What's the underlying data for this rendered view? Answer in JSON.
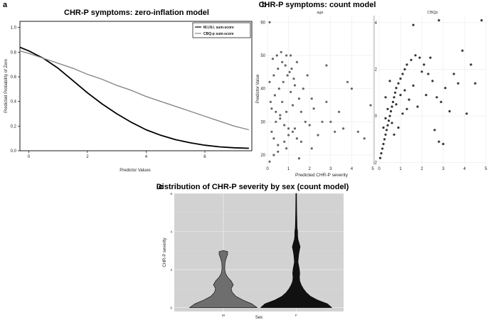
{
  "chart_data": [
    {
      "panel": "a",
      "type": "line",
      "title": "CHR-P symptoms: zero-inflation model",
      "xlabel": "Predictor Values",
      "ylabel": "Predicted Probability of Zero",
      "xlim": [
        -0.3,
        7.6
      ],
      "ylim": [
        0,
        1.05
      ],
      "xticks": [
        0,
        2,
        4,
        6
      ],
      "yticks": [
        0.0,
        0.2,
        0.4,
        0.6,
        0.8,
        1.0
      ],
      "legend_position": "top-right",
      "series": [
        {
          "name": "M.I.N.I. sum-score",
          "color": "#000000",
          "x": [
            -0.3,
            0,
            0.5,
            1,
            1.5,
            2,
            2.5,
            3,
            3.5,
            4,
            4.5,
            5,
            5.5,
            6,
            6.5,
            7,
            7.5
          ],
          "y": [
            0.84,
            0.81,
            0.75,
            0.67,
            0.57,
            0.47,
            0.38,
            0.3,
            0.23,
            0.17,
            0.125,
            0.09,
            0.065,
            0.045,
            0.032,
            0.024,
            0.02
          ]
        },
        {
          "name": "CBQ-p sum-score",
          "color": "#888888",
          "x": [
            -0.3,
            0,
            0.5,
            1,
            1.5,
            2,
            2.5,
            3,
            3.5,
            4,
            4.5,
            5,
            5.5,
            6,
            6.5,
            7,
            7.5
          ],
          "y": [
            0.81,
            0.79,
            0.75,
            0.71,
            0.67,
            0.62,
            0.58,
            0.53,
            0.49,
            0.44,
            0.4,
            0.36,
            0.32,
            0.28,
            0.24,
            0.2,
            0.17
          ]
        }
      ]
    },
    {
      "panel": "b",
      "type": "scatter",
      "title": "CHR-P symptoms: count model",
      "xlabel": "Predicted CHR-P severity",
      "ylabel": "Predictor Value",
      "facets": [
        {
          "strip": "age",
          "xlim": [
            0,
            5
          ],
          "ylim": [
            17,
            62
          ],
          "xticks": [
            0,
            1,
            2,
            3,
            4,
            5
          ],
          "yticks": [
            20,
            30,
            40,
            50,
            60
          ],
          "color": "#666666",
          "points": [
            [
              0.1,
              18
            ],
            [
              0.3,
              20
            ],
            [
              0.5,
              21
            ],
            [
              0.8,
              24
            ],
            [
              1.0,
              26
            ],
            [
              1.3,
              28
            ],
            [
              0.2,
              27
            ],
            [
              0.4,
              30
            ],
            [
              0.6,
              31
            ],
            [
              0.9,
              33
            ],
            [
              1.2,
              35
            ],
            [
              1.5,
              37
            ],
            [
              0.15,
              36
            ],
            [
              0.35,
              38
            ],
            [
              0.55,
              40
            ],
            [
              0.75,
              42
            ],
            [
              0.95,
              44
            ],
            [
              1.15,
              46
            ],
            [
              1.4,
              48
            ],
            [
              0.25,
              49
            ],
            [
              0.45,
              50
            ],
            [
              0.65,
              51
            ],
            [
              0.85,
              47
            ],
            [
              1.05,
              45
            ],
            [
              1.25,
              43
            ],
            [
              0.1,
              42
            ],
            [
              0.3,
              44
            ],
            [
              0.5,
              46
            ],
            [
              0.7,
              48
            ],
            [
              0.9,
              50
            ],
            [
              0.2,
              34
            ],
            [
              0.4,
              33
            ],
            [
              0.6,
              32
            ],
            [
              0.8,
              29
            ],
            [
              1.0,
              28
            ],
            [
              1.2,
              27
            ],
            [
              1.4,
              25
            ],
            [
              1.6,
              24
            ],
            [
              1.8,
              30
            ],
            [
              2.0,
              29
            ],
            [
              2.2,
              34
            ],
            [
              2.4,
              26
            ],
            [
              2.6,
              30
            ],
            [
              2.8,
              36
            ],
            [
              3.0,
              30
            ],
            [
              3.2,
              27
            ],
            [
              3.4,
              33
            ],
            [
              3.6,
              28
            ],
            [
              3.8,
              42
            ],
            [
              4.0,
              40
            ],
            [
              4.3,
              27
            ],
            [
              4.6,
              25
            ],
            [
              4.9,
              35
            ],
            [
              2.8,
              47
            ],
            [
              1.7,
              40
            ],
            [
              1.9,
              44
            ],
            [
              2.1,
              37
            ],
            [
              1.1,
              39
            ],
            [
              1.3,
              41
            ],
            [
              0.7,
              36
            ],
            [
              0.3,
              25
            ],
            [
              0.5,
              23
            ],
            [
              0.9,
              22
            ],
            [
              1.5,
              19
            ],
            [
              2.1,
              22
            ],
            [
              0.1,
              60
            ],
            [
              1.1,
              50
            ],
            [
              1.6,
              33
            ]
          ]
        },
        {
          "strip": "CBQp",
          "xlim": [
            0,
            5
          ],
          "ylim": [
            -2.1,
            4.3
          ],
          "xticks": [
            0,
            1,
            2,
            3,
            4,
            5
          ],
          "yticks": [
            -2,
            0,
            2,
            4
          ],
          "color": "#333333",
          "points": [
            [
              0.05,
              -1.8
            ],
            [
              0.1,
              -1.6
            ],
            [
              0.15,
              -1.4
            ],
            [
              0.2,
              -1.2
            ],
            [
              0.25,
              -1.0
            ],
            [
              0.3,
              -0.8
            ],
            [
              0.35,
              -0.6
            ],
            [
              0.4,
              -0.4
            ],
            [
              0.45,
              -0.2
            ],
            [
              0.5,
              0.0
            ],
            [
              0.55,
              0.2
            ],
            [
              0.6,
              0.4
            ],
            [
              0.65,
              0.6
            ],
            [
              0.7,
              0.8
            ],
            [
              0.75,
              1.0
            ],
            [
              0.8,
              1.2
            ],
            [
              0.9,
              1.4
            ],
            [
              1.0,
              1.6
            ],
            [
              1.1,
              1.8
            ],
            [
              1.2,
              2.0
            ],
            [
              1.3,
              2.2
            ],
            [
              1.5,
              2.4
            ],
            [
              1.7,
              2.6
            ],
            [
              1.9,
              2.5
            ],
            [
              2.1,
              2.2
            ],
            [
              2.3,
              1.8
            ],
            [
              2.5,
              1.5
            ],
            [
              2.7,
              0.8
            ],
            [
              2.9,
              0.6
            ],
            [
              3.1,
              1.2
            ],
            [
              3.3,
              0.2
            ],
            [
              3.5,
              1.8
            ],
            [
              3.7,
              1.4
            ],
            [
              3.9,
              2.8
            ],
            [
              4.1,
              0.1
            ],
            [
              4.3,
              2.2
            ],
            [
              4.5,
              1.4
            ],
            [
              4.8,
              4.1
            ],
            [
              2.8,
              4.1
            ],
            [
              1.6,
              3.9
            ],
            [
              0.2,
              -0.5
            ],
            [
              0.3,
              -0.1
            ],
            [
              0.4,
              0.3
            ],
            [
              0.6,
              -0.3
            ],
            [
              0.8,
              0.5
            ],
            [
              1.0,
              0.9
            ],
            [
              1.2,
              1.1
            ],
            [
              1.4,
              0.7
            ],
            [
              1.6,
              1.3
            ],
            [
              1.8,
              0.4
            ],
            [
              2.0,
              1.9
            ],
            [
              2.2,
              0.9
            ],
            [
              2.4,
              2.5
            ],
            [
              2.6,
              -0.6
            ],
            [
              2.8,
              -1.1
            ],
            [
              3.0,
              -1.2
            ],
            [
              0.7,
              -0.8
            ],
            [
              0.9,
              -0.5
            ],
            [
              1.1,
              0.1
            ],
            [
              1.3,
              0.3
            ],
            [
              0.5,
              1.5
            ],
            [
              0.3,
              0.8
            ]
          ]
        }
      ]
    },
    {
      "panel": "c",
      "type": "violin",
      "title": "Distribution of CHR-P severity by sex (count model)",
      "xlabel": "Sex",
      "ylabel": "CHR-P severity",
      "ylim": [
        -0.2,
        6
      ],
      "yticks": [
        0,
        2,
        4,
        6
      ],
      "categories": [
        "M",
        "F"
      ],
      "groups": [
        {
          "name": "M",
          "color": "#6e6e6e",
          "profile": [
            [
              0,
              0.95
            ],
            [
              0.2,
              0.8
            ],
            [
              0.4,
              0.55
            ],
            [
              0.6,
              0.35
            ],
            [
              0.8,
              0.25
            ],
            [
              1.0,
              0.22
            ],
            [
              1.2,
              0.28
            ],
            [
              1.4,
              0.22
            ],
            [
              1.6,
              0.12
            ],
            [
              1.8,
              0.06
            ],
            [
              2.0,
              0.04
            ],
            [
              2.2,
              0.04
            ],
            [
              2.4,
              0.05
            ],
            [
              2.6,
              0.08
            ],
            [
              2.8,
              0.12
            ],
            [
              2.95,
              0.12
            ],
            [
              3.0,
              0.0
            ]
          ]
        },
        {
          "name": "F",
          "color": "#111111",
          "profile": [
            [
              0,
              1.0
            ],
            [
              0.2,
              0.88
            ],
            [
              0.4,
              0.6
            ],
            [
              0.6,
              0.4
            ],
            [
              0.8,
              0.28
            ],
            [
              1.0,
              0.2
            ],
            [
              1.2,
              0.14
            ],
            [
              1.4,
              0.1
            ],
            [
              1.6,
              0.09
            ],
            [
              1.8,
              0.1
            ],
            [
              2.0,
              0.09
            ],
            [
              2.2,
              0.07
            ],
            [
              2.4,
              0.05
            ],
            [
              2.6,
              0.06
            ],
            [
              2.8,
              0.07
            ],
            [
              3.0,
              0.09
            ],
            [
              3.2,
              0.11
            ],
            [
              3.4,
              0.08
            ],
            [
              3.6,
              0.05
            ],
            [
              3.8,
              0.04
            ],
            [
              4.0,
              0.04
            ],
            [
              4.2,
              0.025
            ],
            [
              4.6,
              0.02
            ],
            [
              5.0,
              0.015
            ],
            [
              5.5,
              0.012
            ],
            [
              6.0,
              0.01
            ]
          ]
        }
      ]
    }
  ]
}
